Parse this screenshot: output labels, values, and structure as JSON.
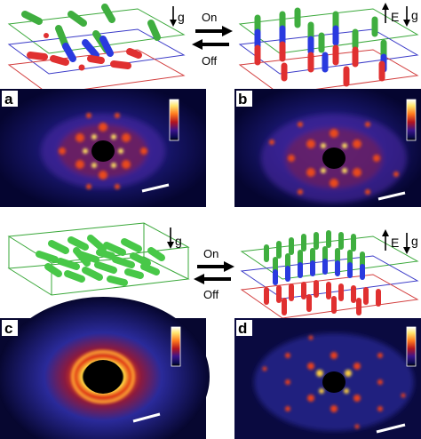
{
  "panels": [
    {
      "id": "a",
      "label": "a",
      "pattern": "hexagonal-spots"
    },
    {
      "id": "b",
      "label": "b",
      "pattern": "hexagonal-spots"
    },
    {
      "id": "c",
      "label": "c",
      "pattern": "diffuse-ring"
    },
    {
      "id": "d",
      "label": "d",
      "pattern": "hexagonal-lattice"
    }
  ],
  "switch_top": {
    "on": "On",
    "off": "Off"
  },
  "switch_bottom": {
    "on": "On",
    "off": "Off"
  },
  "gravity_label": "g",
  "field_label": "E",
  "colors": {
    "rod_green": "#4cd94c",
    "rod_red": "#e03030",
    "rod_blue": "#2a3adf",
    "plane_green": "#3aa83a",
    "plane_blue": "#3a3ac8",
    "plane_red": "#d23c3c",
    "pattern_bg": "#0a0a3c",
    "pattern_ring": "#d02810",
    "pattern_hot": "#ffe060"
  },
  "colorbar": [
    "#ffffff",
    "#ffe66e",
    "#ff7a1e",
    "#b4141e",
    "#3c148c",
    "#0a0a50",
    "#000000"
  ]
}
